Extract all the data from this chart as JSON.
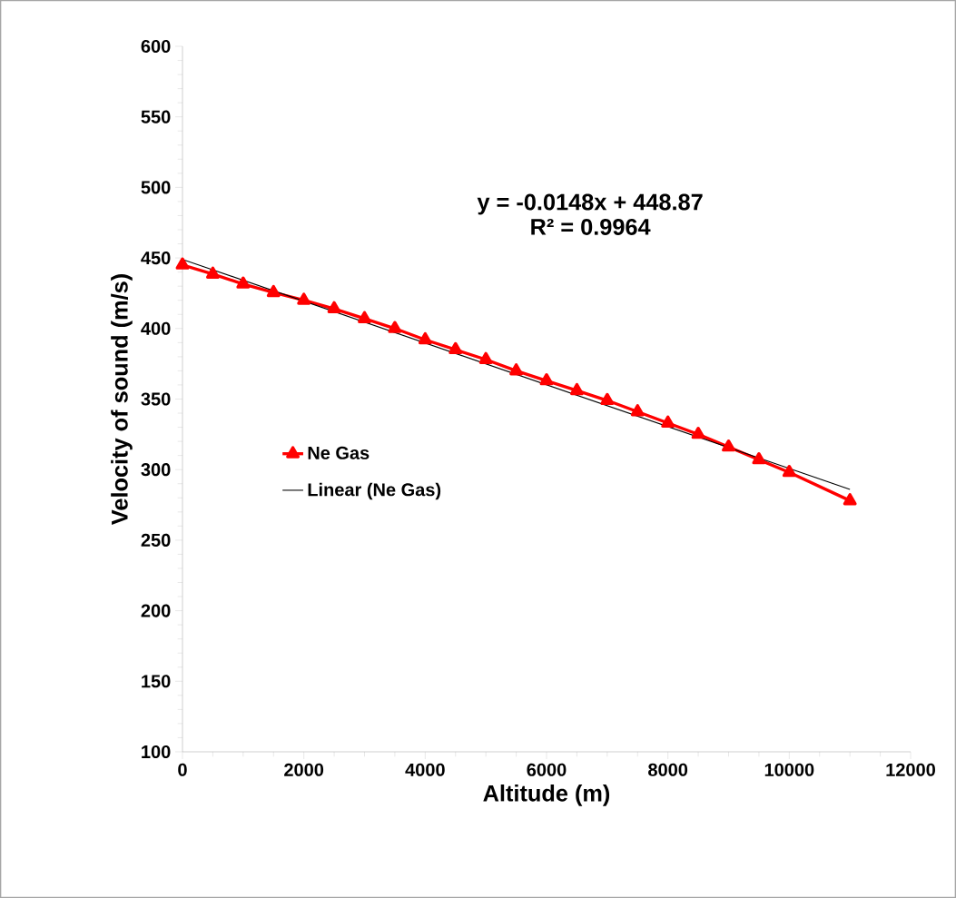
{
  "chart_data": {
    "type": "line",
    "xlabel": "Altitude (m)",
    "ylabel": "Velocity of sound (m/s)",
    "xlim": [
      0,
      12000
    ],
    "ylim": [
      100,
      600
    ],
    "xticks": [
      0,
      2000,
      4000,
      6000,
      8000,
      10000,
      12000
    ],
    "yticks": [
      100,
      150,
      200,
      250,
      300,
      350,
      400,
      450,
      500,
      550,
      600
    ],
    "x": [
      0,
      500,
      1000,
      1500,
      2000,
      2500,
      3000,
      3500,
      4000,
      4500,
      5000,
      5500,
      6000,
      6500,
      7000,
      7500,
      8000,
      8500,
      9000,
      9500,
      10000,
      11000
    ],
    "series": [
      {
        "name": "Ne Gas",
        "color": "#ff0000",
        "marker": "triangle",
        "values": [
          445,
          438.5,
          431.5,
          425.5,
          420,
          414,
          407,
          400,
          392,
          385,
          378,
          370,
          363,
          356,
          349,
          341,
          333,
          325,
          316,
          307,
          298,
          278
        ]
      },
      {
        "name": "Linear (Ne Gas)",
        "color": "#000000",
        "marker": "none",
        "x": [
          0,
          11000
        ],
        "values": [
          449,
          286
        ]
      }
    ],
    "annotations": [
      "y = -0.0148x + 448.87",
      "R² = 0.9964"
    ],
    "grid": false,
    "legend": "left"
  }
}
